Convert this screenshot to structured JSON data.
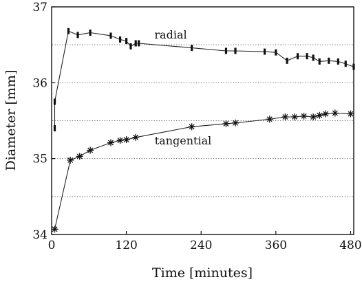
{
  "chart_data": {
    "type": "line",
    "title": "",
    "xlabel": "Time [minutes]",
    "ylabel": "Diameter [mm]",
    "xlim": [
      0,
      485
    ],
    "ylim": [
      34,
      37
    ],
    "x_ticks": [
      0,
      120,
      240,
      360,
      480
    ],
    "y_ticks": [
      34,
      35,
      36,
      37
    ],
    "grid": {
      "horizontal_dotted_at": [
        34.5,
        35.0,
        35.5,
        36.0,
        36.5
      ]
    },
    "series": [
      {
        "name": "radial",
        "marker": "vertical-bar",
        "color": "#111111",
        "points": [
          [
            5,
            35.4
          ],
          [
            5,
            35.75
          ],
          [
            27,
            36.68
          ],
          [
            42,
            36.63
          ],
          [
            62,
            36.66
          ],
          [
            95,
            36.62
          ],
          [
            110,
            36.57
          ],
          [
            120,
            36.55
          ],
          [
            127,
            36.48
          ],
          [
            135,
            36.52
          ],
          [
            140,
            36.52
          ],
          [
            225,
            36.46
          ],
          [
            280,
            36.42
          ],
          [
            295,
            36.42
          ],
          [
            342,
            36.41
          ],
          [
            360,
            36.4
          ],
          [
            378,
            36.29
          ],
          [
            395,
            36.35
          ],
          [
            410,
            36.35
          ],
          [
            420,
            36.33
          ],
          [
            430,
            36.28
          ],
          [
            445,
            36.29
          ],
          [
            460,
            36.28
          ],
          [
            472,
            36.25
          ],
          [
            485,
            36.21
          ]
        ]
      },
      {
        "name": "tangential",
        "marker": "asterisk",
        "color": "#111111",
        "points": [
          [
            5,
            34.07
          ],
          [
            30,
            34.98
          ],
          [
            45,
            35.03
          ],
          [
            62,
            35.11
          ],
          [
            95,
            35.21
          ],
          [
            110,
            35.24
          ],
          [
            120,
            35.25
          ],
          [
            135,
            35.28
          ],
          [
            225,
            35.42
          ],
          [
            280,
            35.46
          ],
          [
            295,
            35.47
          ],
          [
            350,
            35.52
          ],
          [
            375,
            35.55
          ],
          [
            390,
            35.55
          ],
          [
            405,
            35.56
          ],
          [
            420,
            35.55
          ],
          [
            430,
            35.57
          ],
          [
            440,
            35.59
          ],
          [
            455,
            35.6
          ],
          [
            480,
            35.59
          ]
        ]
      }
    ]
  }
}
